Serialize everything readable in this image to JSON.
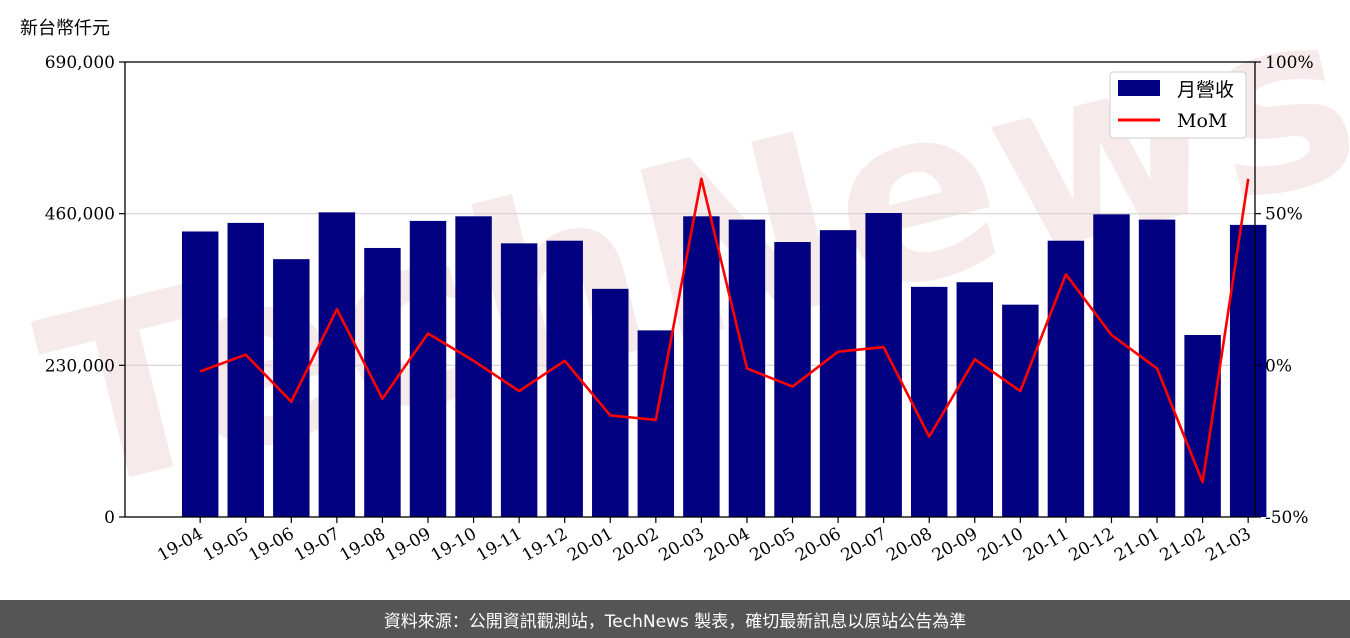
{
  "watermark": "TechNews",
  "footer": {
    "text": "資料來源：公開資訊觀測站，TechNews 製表，確切最新訊息以原站公告為準"
  },
  "colors": {
    "bar": "#000080",
    "line": "#ff0000",
    "grid": "#d3d3d3",
    "footer_bg": "#555555"
  },
  "chart_data": {
    "type": "bar",
    "ylabel_left": "新台幣仟元",
    "categories": [
      "19-04",
      "19-05",
      "19-06",
      "19-07",
      "19-08",
      "19-09",
      "19-10",
      "19-11",
      "19-12",
      "20-01",
      "20-02",
      "20-03",
      "20-04",
      "20-05",
      "20-06",
      "20-07",
      "20-08",
      "20-09",
      "20-10",
      "20-11",
      "20-12",
      "21-01",
      "21-02",
      "21-03"
    ],
    "ylim_left": [
      0,
      690000
    ],
    "yticks_left": [
      0,
      230000,
      460000,
      690000
    ],
    "ytick_labels_left": [
      "0",
      "230,000",
      "460,000",
      "690,000"
    ],
    "ylim_right": [
      -50,
      100
    ],
    "yticks_right": [
      -50,
      0,
      50,
      100
    ],
    "ytick_labels_right": [
      "-50%",
      "0%",
      "50%",
      "100%"
    ],
    "grid": true,
    "legend_position": "top-right",
    "series": [
      {
        "name": "月營收",
        "type": "bar",
        "axis": "left",
        "values": [
          433000,
          446000,
          391000,
          462000,
          408000,
          449000,
          456000,
          415000,
          419000,
          346000,
          283000,
          456000,
          451000,
          417000,
          435000,
          461000,
          349000,
          356000,
          322000,
          419000,
          459000,
          451000,
          276000,
          443000
        ]
      },
      {
        "name": "MoM",
        "type": "line",
        "axis": "right",
        "values": [
          -2,
          3.5,
          -12,
          18.5,
          -11,
          10.5,
          1.5,
          -8.5,
          1.5,
          -16.5,
          -18,
          61.5,
          -1,
          -7,
          4.5,
          6,
          -23.5,
          2,
          -8.5,
          30,
          10,
          -1,
          -38.5,
          61.5
        ]
      }
    ]
  }
}
